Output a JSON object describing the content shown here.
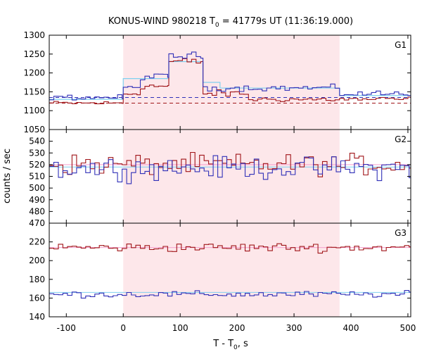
{
  "title": {
    "prefix": "KONUS-WIND 980218 T",
    "sub": "0",
    "suffix": " = 41779s UT (11:36:19.000)"
  },
  "xlabel": {
    "prefix": "T - T",
    "sub": "0",
    "suffix": ", s"
  },
  "ylabel": "counts / sec",
  "colors": {
    "pink_region": "#fde7ea",
    "series_red": "#a01418",
    "series_blue": "#3030b8",
    "fit_light": "#7fd0ef",
    "fit_pink": "#f5a0cf"
  },
  "chart_data": {
    "type": "line",
    "xlim": [
      -130,
      505
    ],
    "x_ticks": [
      -100,
      0,
      100,
      200,
      300,
      400,
      500
    ],
    "x_tick_labels": [
      "-100",
      "0",
      "100",
      "200",
      "300",
      "400",
      "500"
    ],
    "shaded_interval": [
      0,
      380
    ],
    "panels": [
      {
        "label": "G1",
        "ylim": [
          1050,
          1300
        ],
        "y_ticks": [
          1050,
          1100,
          1150,
          1200,
          1250,
          1300
        ],
        "y_tick_labels": [
          "1050",
          "1100",
          "1150",
          "1200",
          "1250",
          "1300"
        ],
        "background_levels": [
          {
            "series": "red",
            "level": 1120
          },
          {
            "series": "blue",
            "level": 1135
          }
        ],
        "step_fit": {
          "x_edges": [
            -130,
            0,
            80,
            140,
            170,
            380,
            505
          ],
          "levels": [
            1130,
            1185,
            1230,
            1175,
            1160,
            1140
          ]
        },
        "series": [
          {
            "color": "red",
            "segments": [
              {
                "x": [
                  -130,
                  0
                ],
                "base": 1120,
                "amp": 8
              },
              {
                "x": [
                  0,
                  30
                ],
                "base": 1145,
                "amp": 10
              },
              {
                "x": [
                  30,
                  80
                ],
                "base": 1165,
                "amp": 12
              },
              {
                "x": [
                  80,
                  140
                ],
                "base": 1230,
                "amp": 15
              },
              {
                "x": [
                  140,
                  220
                ],
                "base": 1145,
                "amp": 14
              },
              {
                "x": [
                  220,
                  505
                ],
                "base": 1130,
                "amp": 10
              }
            ]
          },
          {
            "color": "blue",
            "segments": [
              {
                "x": [
                  -130,
                  0
                ],
                "base": 1135,
                "amp": 10
              },
              {
                "x": [
                  0,
                  30
                ],
                "base": 1160,
                "amp": 10
              },
              {
                "x": [
                  30,
                  80
                ],
                "base": 1190,
                "amp": 12
              },
              {
                "x": [
                  80,
                  140
                ],
                "base": 1245,
                "amp": 15
              },
              {
                "x": [
                  140,
                  380
                ],
                "base": 1160,
                "amp": 12
              },
              {
                "x": [
                  380,
                  505
                ],
                "base": 1145,
                "amp": 12
              }
            ]
          }
        ]
      },
      {
        "label": "G2",
        "ylim": [
          470,
          550
        ],
        "y_ticks": [
          470,
          480,
          490,
          500,
          510,
          520,
          530,
          540
        ],
        "y_tick_labels": [
          "470",
          "480",
          "490",
          "500",
          "510",
          "520",
          "530",
          "540"
        ],
        "fits": [
          {
            "color": "light",
            "level": 518
          },
          {
            "color": "pink",
            "level": 520
          }
        ],
        "series": [
          {
            "color": "red",
            "segments": [
              {
                "x": [
                  -130,
                  505
                ],
                "base": 520,
                "amp": 13
              }
            ]
          },
          {
            "color": "blue",
            "segments": [
              {
                "x": [
                  -130,
                  505
                ],
                "base": 517,
                "amp": 14
              }
            ]
          }
        ]
      },
      {
        "label": "G3",
        "ylim": [
          140,
          240
        ],
        "y_ticks": [
          140,
          160,
          180,
          200,
          220
        ],
        "y_tick_labels": [
          "140",
          "160",
          "180",
          "200",
          "220"
        ],
        "fits": [
          {
            "color": "pink",
            "level": 214
          },
          {
            "color": "light",
            "level": 166
          }
        ],
        "series": [
          {
            "color": "red",
            "segments": [
              {
                "x": [
                  -130,
                  505
                ],
                "base": 214,
                "amp": 7
              }
            ]
          },
          {
            "color": "blue",
            "segments": [
              {
                "x": [
                  -130,
                  505
                ],
                "base": 164,
                "amp": 5
              }
            ]
          }
        ]
      }
    ]
  }
}
